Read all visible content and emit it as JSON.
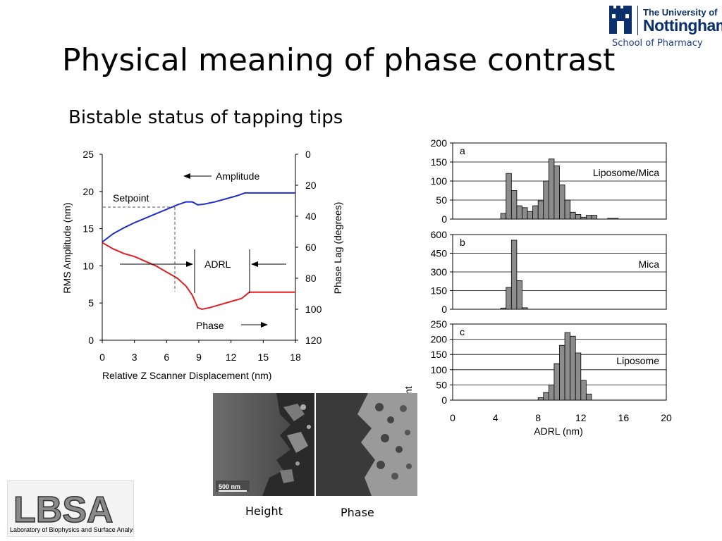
{
  "slide": {
    "title": "Physical meaning of phase contrast",
    "subtitle": "Bistable status of tapping tips"
  },
  "logo": {
    "line1": "The University of",
    "line2": "Nottingham",
    "school": "School of Pharmacy",
    "color": "#0a2f6b"
  },
  "lbsa": {
    "acronym": "LBSA",
    "full_name": "Laboratory of Biophysics and Surface Analysis"
  },
  "afm_images": {
    "scale_bar": "500 nm",
    "height_label": "Height",
    "phase_label": "Phase"
  },
  "chart_data": [
    {
      "type": "line",
      "xlabel": "Relative Z Scanner Displacement (nm)",
      "ylabel": "RMS Amplitude (nm)",
      "y2label": "Phase Lag (degrees)",
      "xlim": [
        0,
        18
      ],
      "ylim": [
        0,
        25
      ],
      "y2lim": [
        120,
        0
      ],
      "xticks": [
        "0",
        "3",
        "6",
        "9",
        "12",
        "15",
        "18"
      ],
      "yticks": [
        "0",
        "5",
        "10",
        "15",
        "20",
        "25"
      ],
      "y2ticks": [
        "0",
        "20",
        "40",
        "60",
        "80",
        "100",
        "120"
      ],
      "annotations": {
        "amplitude": "Amplitude",
        "setpoint": "Setpoint",
        "adrl": "ADRL",
        "phase": "Phase"
      },
      "series": [
        {
          "name": "Amplitude",
          "color": "#1f2ecc",
          "axis": "left",
          "x": [
            0,
            1,
            2,
            3,
            4,
            5,
            6,
            7,
            7.8,
            8.4,
            8.9,
            9.5,
            10.5,
            11.5,
            12.5,
            13.3,
            13.7,
            15,
            16,
            17,
            18
          ],
          "y": [
            13.2,
            14.3,
            15.1,
            15.8,
            16.4,
            17.0,
            17.6,
            18.2,
            18.6,
            18.6,
            18.2,
            18.3,
            18.6,
            19.0,
            19.4,
            19.8,
            19.8,
            19.8,
            19.8,
            19.8,
            19.8
          ]
        },
        {
          "name": "Phase",
          "color": "#e02020",
          "axis": "right",
          "x": [
            0,
            1,
            2,
            3,
            4,
            5,
            6,
            7,
            7.8,
            8.4,
            8.9,
            9.3,
            10,
            11,
            12,
            13,
            13.7,
            14.5,
            15.5,
            16.5,
            18
          ],
          "y": [
            57,
            61,
            64,
            66,
            69,
            72,
            76,
            80,
            85,
            91,
            99,
            100,
            99,
            97,
            95,
            93,
            89,
            89,
            89,
            89,
            89
          ]
        }
      ]
    },
    {
      "type": "bar",
      "panel": "a",
      "label": "Liposome/Mica",
      "xlabel": "ADRL (nm)",
      "ylabel": "Count",
      "xlim": [
        0,
        20
      ],
      "ylim": [
        0,
        200
      ],
      "yticks": [
        "0",
        "50",
        "100",
        "150",
        "200"
      ],
      "bin_width": 0.5,
      "bins": [
        4.75,
        5.25,
        5.75,
        6.25,
        6.75,
        7.25,
        7.75,
        8.25,
        8.75,
        9.25,
        9.75,
        10.25,
        10.75,
        11.25,
        11.75,
        12.25,
        12.75,
        13.25,
        14.75,
        15.25
      ],
      "values": [
        15,
        120,
        75,
        35,
        30,
        20,
        35,
        48,
        100,
        158,
        140,
        90,
        50,
        18,
        12,
        5,
        10,
        10,
        2,
        2
      ]
    },
    {
      "type": "bar",
      "panel": "b",
      "label": "Mica",
      "xlabel": "ADRL (nm)",
      "ylabel": "Count",
      "xlim": [
        0,
        20
      ],
      "ylim": [
        0,
        600
      ],
      "yticks": [
        "0",
        "150",
        "300",
        "450",
        "600"
      ],
      "bin_width": 0.5,
      "bins": [
        4.75,
        5.25,
        5.75,
        6.25,
        6.75
      ],
      "values": [
        10,
        175,
        555,
        230,
        12
      ]
    },
    {
      "type": "bar",
      "panel": "c",
      "label": "Liposome",
      "xlabel": "ADRL (nm)",
      "ylabel": "Count",
      "xlim": [
        0,
        20
      ],
      "ylim": [
        0,
        250
      ],
      "yticks": [
        "0",
        "50",
        "100",
        "150",
        "200",
        "250"
      ],
      "xticks": [
        "0",
        "4",
        "8",
        "12",
        "16",
        "20"
      ],
      "bin_width": 0.5,
      "bins": [
        8.25,
        8.75,
        9.25,
        9.75,
        10.25,
        10.75,
        11.25,
        11.75,
        12.25,
        12.75
      ],
      "values": [
        8,
        25,
        50,
        120,
        180,
        222,
        210,
        155,
        65,
        20
      ]
    }
  ]
}
